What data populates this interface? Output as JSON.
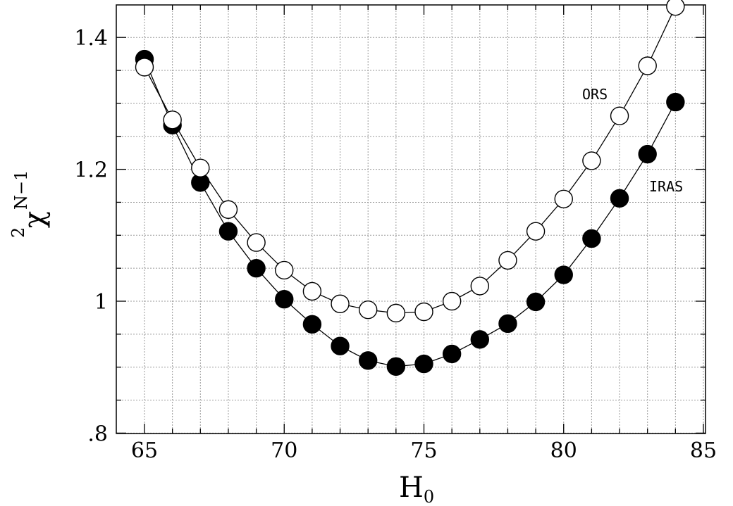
{
  "chart_data": {
    "type": "scatter",
    "xlabel": "H",
    "xlabel_subscript": "0",
    "ylabel": "χ",
    "ylabel_superscript": "2",
    "ylabel_subscript": "N−1",
    "xlim": [
      64,
      86
    ],
    "ylim": [
      0.8,
      1.45
    ],
    "x_ticks": [
      65,
      70,
      75,
      80,
      85
    ],
    "x_tick_labels": [
      "65",
      "70",
      "75",
      "80",
      "85"
    ],
    "y_ticks": [
      0.8,
      1.0,
      1.2,
      1.4
    ],
    "y_tick_labels": [
      ".8",
      "1",
      "1.2",
      "1.4"
    ],
    "grid": true,
    "series": [
      {
        "name": "IRAS",
        "marker": "filled-circle",
        "color": "#000000",
        "x": [
          65,
          66,
          67,
          68,
          69,
          70,
          71,
          72,
          73,
          74,
          75,
          76,
          77,
          78,
          79,
          80,
          81,
          82,
          83,
          84
        ],
        "values": [
          1.367,
          1.267,
          1.18,
          1.106,
          1.05,
          1.003,
          0.965,
          0.932,
          0.91,
          0.901,
          0.905,
          0.92,
          0.942,
          0.966,
          0.999,
          1.04,
          1.095,
          1.156,
          1.223,
          1.302
        ]
      },
      {
        "name": "ORS",
        "marker": "open-circle",
        "color": "#000000",
        "x": [
          65,
          66,
          67,
          68,
          69,
          70,
          71,
          72,
          73,
          74,
          75,
          76,
          77,
          78,
          79,
          80,
          81,
          82,
          83,
          84
        ],
        "values": [
          1.355,
          1.275,
          1.202,
          1.139,
          1.089,
          1.047,
          1.015,
          0.996,
          0.987,
          0.982,
          0.984,
          1.0,
          1.023,
          1.062,
          1.106,
          1.155,
          1.213,
          1.281,
          1.357,
          1.447
        ]
      }
    ]
  }
}
